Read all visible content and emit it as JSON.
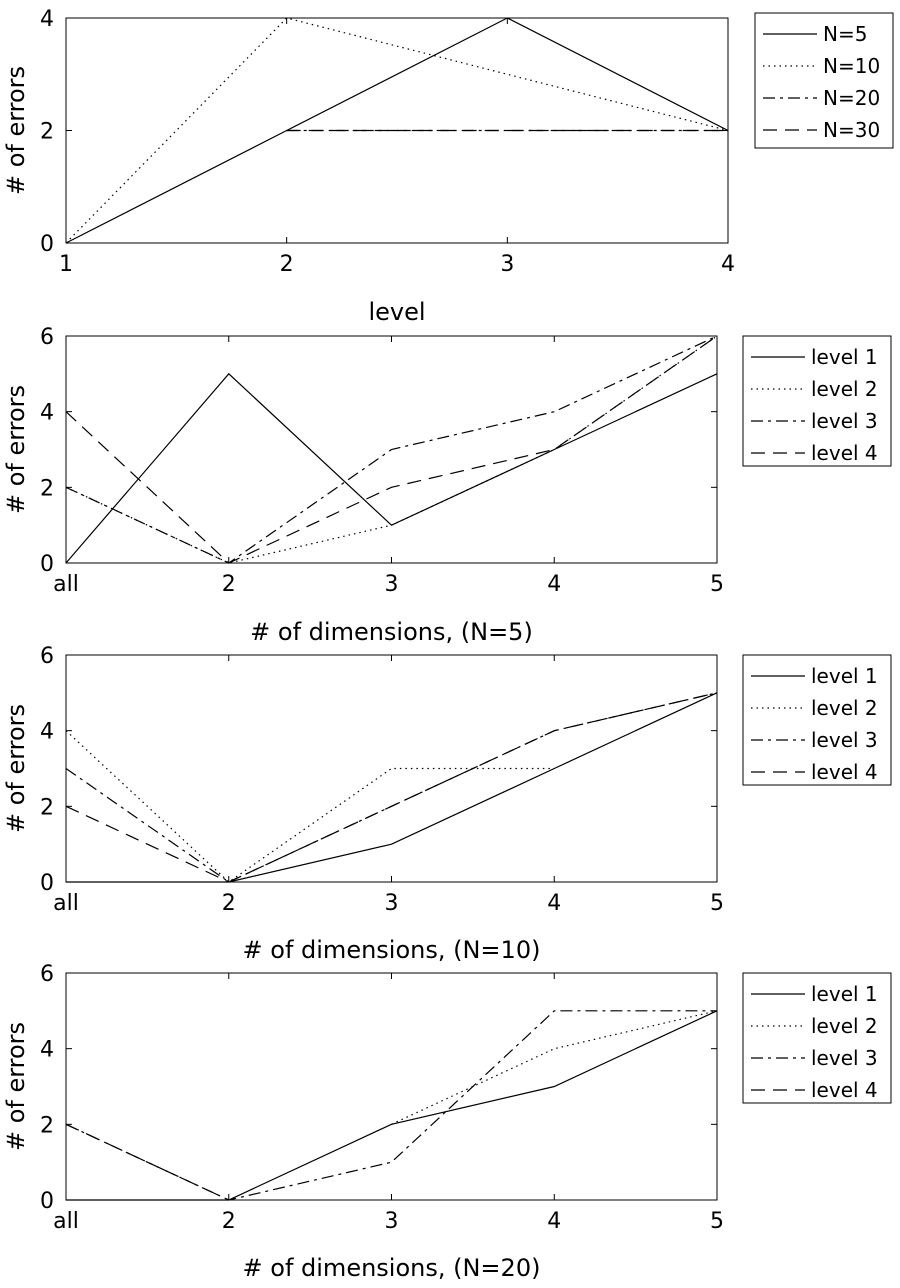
{
  "chart_data": [
    {
      "type": "line",
      "xlabel": "level",
      "ylabel": "# of errors",
      "xlim": [
        1,
        4
      ],
      "ylim": [
        0,
        4
      ],
      "xticks": [
        1,
        2,
        3,
        4
      ],
      "xtick_labels": [
        "1",
        "2",
        "3",
        "4"
      ],
      "yticks": [
        0,
        2,
        4
      ],
      "ytick_labels": [
        "0",
        "2",
        "4"
      ],
      "legend_position": "outside-right",
      "series": [
        {
          "name": "N=5",
          "style": "solid",
          "x": [
            1,
            2,
            3,
            4
          ],
          "values": [
            0,
            2,
            4,
            2
          ]
        },
        {
          "name": "N=10",
          "style": "dotted",
          "x": [
            1,
            2,
            3,
            4
          ],
          "values": [
            0,
            4,
            3,
            2
          ]
        },
        {
          "name": "N=20",
          "style": "dashdot",
          "x": [
            2,
            3,
            4
          ],
          "values": [
            2,
            2,
            2
          ]
        },
        {
          "name": "N=30",
          "style": "dashed",
          "x": [
            2,
            3,
            4
          ],
          "values": [
            2,
            2,
            2
          ]
        }
      ]
    },
    {
      "type": "line",
      "xlabel": "# of dimensions, (N=5)",
      "ylabel": "# of errors",
      "xlim": [
        1,
        5
      ],
      "ylim": [
        0,
        6
      ],
      "xticks": [
        1,
        2,
        3,
        4,
        5
      ],
      "xtick_labels": [
        "all",
        "2",
        "3",
        "4",
        "5"
      ],
      "yticks": [
        0,
        2,
        4,
        6
      ],
      "ytick_labels": [
        "0",
        "2",
        "4",
        "6"
      ],
      "legend_position": "outside-right",
      "series": [
        {
          "name": "level 1",
          "style": "solid",
          "x": [
            1,
            2,
            3,
            4,
            5
          ],
          "values": [
            0,
            5,
            1,
            3,
            5
          ]
        },
        {
          "name": "level 2",
          "style": "dotted",
          "x": [
            1,
            2,
            3,
            4,
            5
          ],
          "values": [
            2,
            0,
            1,
            3,
            6
          ]
        },
        {
          "name": "level 3",
          "style": "dashdot",
          "x": [
            1,
            2,
            3,
            4,
            5
          ],
          "values": [
            2,
            0,
            3,
            4,
            6
          ]
        },
        {
          "name": "level 4",
          "style": "dashed",
          "x": [
            1,
            2,
            3,
            4,
            5
          ],
          "values": [
            4,
            0,
            2,
            3,
            6
          ]
        }
      ]
    },
    {
      "type": "line",
      "xlabel": "# of dimensions, (N=10)",
      "ylabel": "# of errors",
      "xlim": [
        1,
        5
      ],
      "ylim": [
        0,
        6
      ],
      "xticks": [
        1,
        2,
        3,
        4,
        5
      ],
      "xtick_labels": [
        "all",
        "2",
        "3",
        "4",
        "5"
      ],
      "yticks": [
        0,
        2,
        4,
        6
      ],
      "ytick_labels": [
        "0",
        "2",
        "4",
        "6"
      ],
      "legend_position": "outside-right",
      "series": [
        {
          "name": "level 1",
          "style": "solid",
          "x": [
            1,
            2,
            3,
            4,
            5
          ],
          "values": [
            0,
            0,
            1,
            3,
            5
          ]
        },
        {
          "name": "level 2",
          "style": "dotted",
          "x": [
            1,
            2,
            3,
            4
          ],
          "values": [
            4,
            0,
            3,
            3
          ]
        },
        {
          "name": "level 3",
          "style": "dashdot",
          "x": [
            1,
            2,
            3,
            4,
            5
          ],
          "values": [
            3,
            0,
            2,
            4,
            5
          ]
        },
        {
          "name": "level 4",
          "style": "dashed",
          "x": [
            1,
            2,
            3,
            4,
            5
          ],
          "values": [
            2,
            0,
            2,
            4,
            5
          ]
        }
      ]
    },
    {
      "type": "line",
      "xlabel": "# of dimensions, (N=20)",
      "ylabel": "# of errors",
      "xlim": [
        1,
        5
      ],
      "ylim": [
        0,
        6
      ],
      "xticks": [
        1,
        2,
        3,
        4,
        5
      ],
      "xtick_labels": [
        "all",
        "2",
        "3",
        "4",
        "5"
      ],
      "yticks": [
        0,
        2,
        4,
        6
      ],
      "ytick_labels": [
        "0",
        "2",
        "4",
        "6"
      ],
      "legend_position": "outside-right",
      "series": [
        {
          "name": "level 1",
          "style": "solid",
          "x": [
            1,
            2,
            3,
            4,
            5
          ],
          "values": [
            0,
            0,
            2,
            3,
            5
          ]
        },
        {
          "name": "level 2",
          "style": "dotted",
          "x": [
            3,
            4,
            5
          ],
          "values": [
            2,
            4,
            5
          ]
        },
        {
          "name": "level 3",
          "style": "dashdot",
          "x": [
            1,
            2,
            3,
            4,
            5
          ],
          "values": [
            2,
            0,
            1,
            5,
            5
          ]
        },
        {
          "name": "level 4",
          "style": "dashed",
          "x": [
            1,
            2
          ],
          "values": [
            2,
            0
          ]
        }
      ]
    }
  ]
}
